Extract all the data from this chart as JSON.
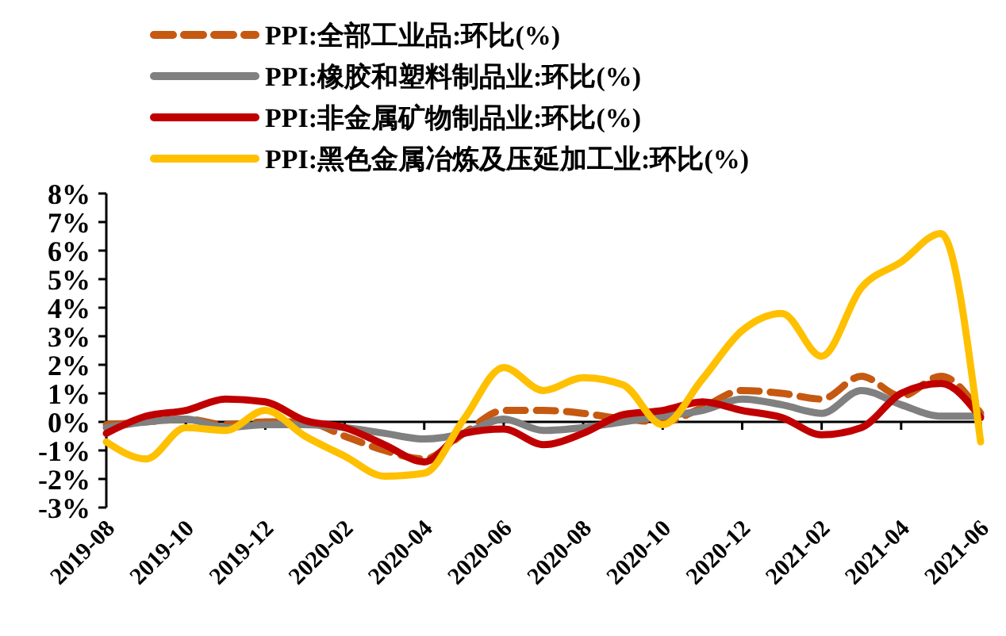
{
  "chart_data": {
    "type": "line",
    "categories": [
      "2019-08",
      null,
      "2019-10",
      null,
      "2019-12",
      null,
      "2020-02",
      null,
      "2020-04",
      null,
      "2020-06",
      null,
      "2020-08",
      null,
      "2020-10",
      null,
      "2020-12",
      null,
      "2021-02",
      null,
      "2021-04",
      null,
      "2021-06"
    ],
    "ylim": [
      -3,
      8
    ],
    "yticks": [
      {
        "value": -3,
        "label": "-3%"
      },
      {
        "value": -2,
        "label": "-2%"
      },
      {
        "value": -1,
        "label": "-1%"
      },
      {
        "value": 0,
        "label": "0%"
      },
      {
        "value": 1,
        "label": "1%"
      },
      {
        "value": 2,
        "label": "2%"
      },
      {
        "value": 3,
        "label": "3%"
      },
      {
        "value": 4,
        "label": "4%"
      },
      {
        "value": 5,
        "label": "5%"
      },
      {
        "value": 6,
        "label": "6%"
      },
      {
        "value": 7,
        "label": "7%"
      },
      {
        "value": 8,
        "label": "8%"
      }
    ],
    "legend": "top",
    "marker": "none",
    "series": [
      {
        "name": "PPI:全部工业品:环比(%)",
        "color": "#c65911",
        "line_style": "dashed",
        "values": [
          -0.1,
          0,
          0.1,
          -0.1,
          0,
          0,
          -0.5,
          -1.0,
          -1.3,
          -0.4,
          0.4,
          0.4,
          0.3,
          0.1,
          0,
          0.5,
          1.1,
          1.0,
          0.8,
          1.6,
          0.9,
          1.6,
          0.3
        ]
      },
      {
        "name": "PPI:橡胶和塑料制品业:环比(%)",
        "color": "#808080",
        "line_style": "solid",
        "values": [
          -0.2,
          0,
          0.1,
          -0.2,
          -0.1,
          -0.1,
          -0.2,
          -0.4,
          -0.6,
          -0.4,
          0.1,
          -0.3,
          -0.2,
          0,
          0.2,
          0.4,
          0.8,
          0.6,
          0.3,
          1.1,
          0.6,
          0.2,
          0.2
        ]
      },
      {
        "name": "PPI:非金属矿物制品业:环比(%)",
        "color": "#c00000",
        "line_style": "solid",
        "values": [
          -0.4,
          0.2,
          0.4,
          0.8,
          0.7,
          0.05,
          -0.2,
          -0.8,
          -1.4,
          -0.4,
          -0.25,
          -0.8,
          -0.4,
          0.25,
          0.4,
          0.7,
          0.4,
          0.15,
          -0.45,
          -0.2,
          1.0,
          1.35,
          0.15
        ]
      },
      {
        "name": "PPI:黑色金属冶炼及压延加工业:环比(%)",
        "color": "#ffc000",
        "line_style": "solid",
        "values": [
          -0.7,
          -1.3,
          -0.2,
          -0.3,
          0.4,
          -0.5,
          -1.2,
          -1.9,
          -1.8,
          0.1,
          1.9,
          1.1,
          1.55,
          1.3,
          -0.1,
          1.5,
          3.2,
          3.8,
          2.3,
          4.7,
          5.6,
          6.6,
          -0.7
        ]
      }
    ]
  }
}
